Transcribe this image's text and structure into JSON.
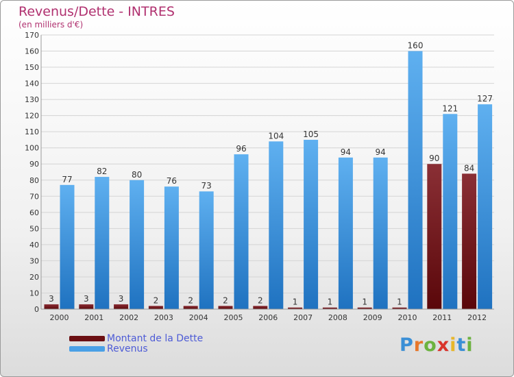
{
  "chart_data": {
    "type": "bar",
    "title": "Revenus/Dette - INTRES",
    "subtitle": "(en milliers d'€)",
    "categories": [
      "2000",
      "2001",
      "2002",
      "2003",
      "2004",
      "2005",
      "2006",
      "2007",
      "2008",
      "2009",
      "2010",
      "2011",
      "2012"
    ],
    "series": [
      {
        "name": "Montant de la Dette",
        "values": [
          3,
          3,
          3,
          2,
          2,
          2,
          2,
          1,
          1,
          1,
          1,
          90,
          84
        ],
        "color": "#6b0f12"
      },
      {
        "name": "Revenus",
        "values": [
          77,
          82,
          80,
          76,
          73,
          96,
          104,
          105,
          94,
          94,
          160,
          121,
          127
        ],
        "color": "#4aa0e6"
      }
    ],
    "ylim": [
      0,
      170
    ],
    "yticks": [
      0,
      10,
      20,
      30,
      40,
      50,
      60,
      70,
      80,
      90,
      100,
      110,
      120,
      130,
      140,
      150,
      160,
      170
    ],
    "grid": true,
    "legend_position": "bottom-left"
  },
  "logo": {
    "letters": [
      "P",
      "r",
      "o",
      "x",
      "i",
      "t",
      "i"
    ],
    "colors": [
      "#3a8fd6",
      "#e8772a",
      "#6cb33f",
      "#d9342b",
      "#e8b72a",
      "#3a8fd6",
      "#6cb33f"
    ]
  }
}
